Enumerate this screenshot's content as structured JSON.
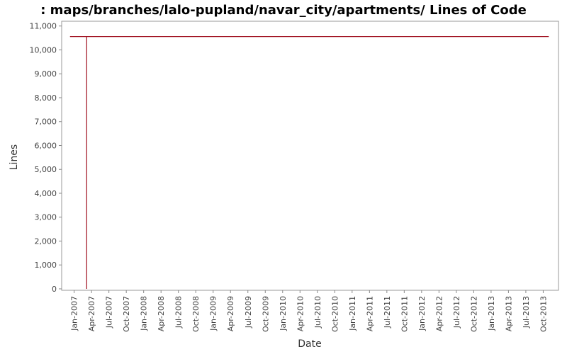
{
  "chart_data": {
    "type": "line",
    "title": ": maps/branches/lalo-pupland/navar_city/apartments/ Lines of Code",
    "x_label": "Date",
    "y_label": "Lines",
    "series": [
      {
        "color": "#a01020",
        "x": [
          2007.18,
          2007.18,
          2006.94,
          2013.83
        ],
        "values": [
          0,
          10560,
          10560,
          10560
        ]
      }
    ],
    "xlim": [
      2006.82,
      2013.97
    ],
    "xticks": [
      {
        "value": 2007.0,
        "label": "Jan-2007"
      },
      {
        "value": 2007.25,
        "label": "Apr-2007"
      },
      {
        "value": 2007.5,
        "label": "Jul-2007"
      },
      {
        "value": 2007.75,
        "label": "Oct-2007"
      },
      {
        "value": 2008.0,
        "label": "Jan-2008"
      },
      {
        "value": 2008.25,
        "label": "Apr-2008"
      },
      {
        "value": 2008.5,
        "label": "Jul-2008"
      },
      {
        "value": 2008.75,
        "label": "Oct-2008"
      },
      {
        "value": 2009.0,
        "label": "Jan-2009"
      },
      {
        "value": 2009.25,
        "label": "Apr-2009"
      },
      {
        "value": 2009.5,
        "label": "Jul-2009"
      },
      {
        "value": 2009.75,
        "label": "Oct-2009"
      },
      {
        "value": 2010.0,
        "label": "Jan-2010"
      },
      {
        "value": 2010.25,
        "label": "Apr-2010"
      },
      {
        "value": 2010.5,
        "label": "Jul-2010"
      },
      {
        "value": 2010.75,
        "label": "Oct-2010"
      },
      {
        "value": 2011.0,
        "label": "Jan-2011"
      },
      {
        "value": 2011.25,
        "label": "Apr-2011"
      },
      {
        "value": 2011.5,
        "label": "Jul-2011"
      },
      {
        "value": 2011.75,
        "label": "Oct-2011"
      },
      {
        "value": 2012.0,
        "label": "Jan-2012"
      },
      {
        "value": 2012.25,
        "label": "Apr-2012"
      },
      {
        "value": 2012.5,
        "label": "Jul-2012"
      },
      {
        "value": 2012.75,
        "label": "Oct-2012"
      },
      {
        "value": 2013.0,
        "label": "Jan-2013"
      },
      {
        "value": 2013.25,
        "label": "Apr-2013"
      },
      {
        "value": 2013.5,
        "label": "Jul-2013"
      },
      {
        "value": 2013.75,
        "label": "Oct-2013"
      }
    ],
    "ylim": [
      -60,
      11200
    ],
    "yticks": [
      0,
      {
        "value": 1000,
        "label": "1,000"
      },
      {
        "value": 2000,
        "label": "2,000"
      },
      {
        "value": 3000,
        "label": "3,000"
      },
      {
        "value": 4000,
        "label": "4,000"
      },
      {
        "value": 5000,
        "label": "5,000"
      },
      {
        "value": 6000,
        "label": "6,000"
      },
      {
        "value": 7000,
        "label": "7,000"
      },
      {
        "value": 8000,
        "label": "8,000"
      },
      {
        "value": 9000,
        "label": "9,000"
      },
      {
        "value": 10000,
        "label": "10,000"
      },
      {
        "value": 11000,
        "label": "11,000"
      }
    ]
  }
}
